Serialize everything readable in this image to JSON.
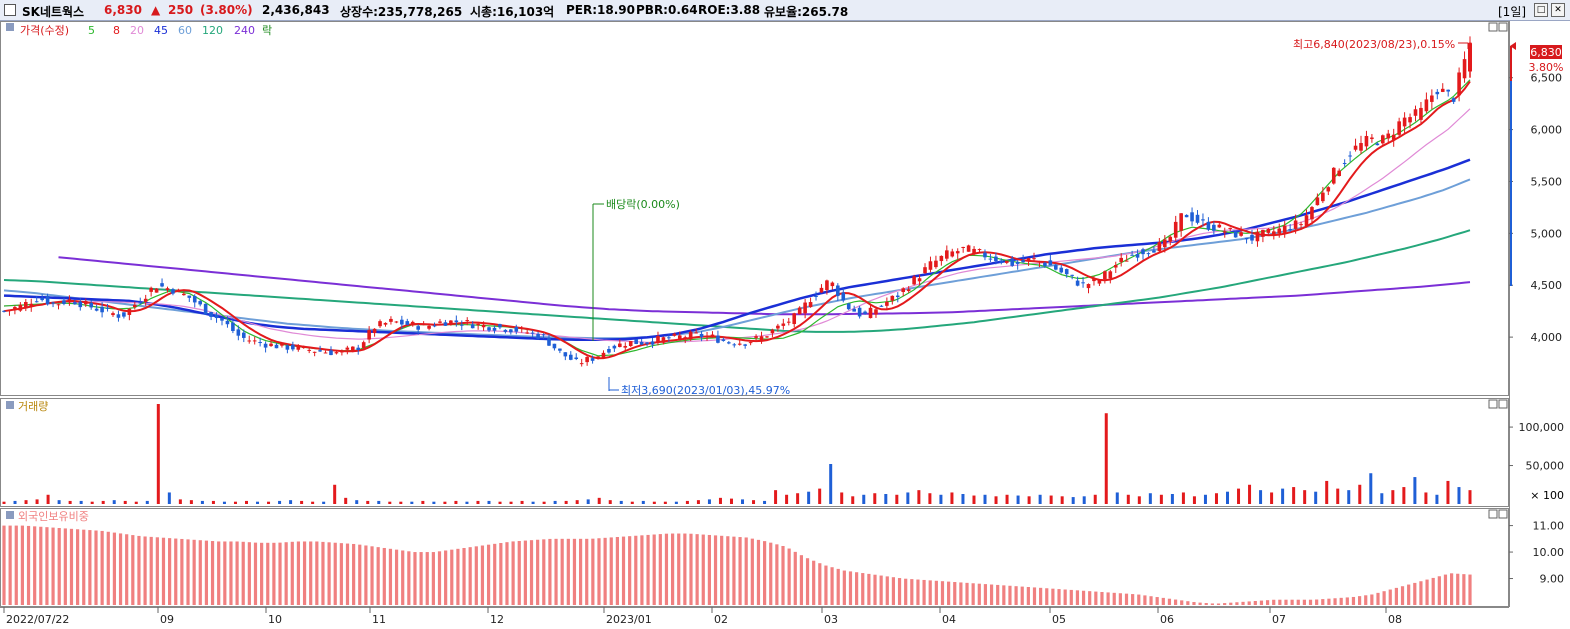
{
  "header": {
    "name": "SK네트웍스",
    "price": "6,830",
    "change_arrow": "▲",
    "change": "250",
    "change_pct": "(3.80%)",
    "volume": "2,436,843",
    "listed": "상장수:235,778,265",
    "mktcap": "시총:16,103억",
    "per": "PER:18.90",
    "pbr": "PBR:0.64",
    "roe": "ROE:3.88",
    "float": "유보율:265.78",
    "period": "[1일]"
  },
  "legend": {
    "price": "가격(수정)",
    "ma5": "5",
    "ma8": "8",
    "ma20": "20",
    "ma45": "45",
    "ma60": "60",
    "ma120": "120",
    "ma240": "240",
    "drop": "락"
  },
  "volume_panel_title": "거래량",
  "foreign_panel_title": "외국인보유비중",
  "colors": {
    "up": "#e31a1c",
    "down": "#1f5fd6",
    "ma5": "#2db82d",
    "ma8": "#e31a1c",
    "ma20": "#e08ad6",
    "ma45": "#1a2fd6",
    "ma60": "#6e9fd8",
    "ma120": "#25a77b",
    "ma240": "#7b2fd6",
    "foreign": "#f08080",
    "annotation_green": "#1b8a1b"
  },
  "chart_data": {
    "type": "line",
    "candles_shown": true,
    "x_tick_labels": [
      "2022/07/22",
      "09",
      "10",
      "11",
      "12",
      "2023/01",
      "02",
      "03",
      "04",
      "05",
      "06",
      "07",
      "08"
    ],
    "price": {
      "ylim": [
        3500,
        6950
      ],
      "y_ticks": [
        "6,500",
        "6,000",
        "5,500",
        "5,000",
        "4,500",
        "4,000"
      ],
      "y_values": [
        6500,
        6000,
        5500,
        5000,
        4500,
        4000
      ],
      "last_price_label": "6,830",
      "last_change_label": "3.80%",
      "close_path": [
        4250,
        4300,
        4380,
        4320,
        4360,
        4300,
        4250,
        4200,
        4350,
        4500,
        4460,
        4380,
        4250,
        4150,
        4000,
        3950,
        3920,
        3900,
        3880,
        3860,
        3850,
        3900,
        4100,
        4150,
        4120,
        4100,
        4150,
        4150,
        4120,
        4100,
        4080,
        4050,
        4000,
        3850,
        3750,
        3800,
        3900,
        3950,
        3950,
        3980,
        4000,
        4020,
        4000,
        3950,
        3950,
        4000,
        4100,
        4200,
        4400,
        4550,
        4300,
        4200,
        4300,
        4400,
        4550,
        4700,
        4800,
        4850,
        4800,
        4750,
        4700,
        4750,
        4700,
        4600,
        4500,
        4550,
        4700,
        4800,
        4850,
        4900,
        5200,
        5100,
        5050,
        5000,
        4950,
        5000,
        5050,
        5100,
        5350,
        5600,
        5800,
        5900,
        5900,
        6100,
        6150,
        6400,
        6300,
        6830
      ],
      "ma5": [
        4300,
        4310,
        4320,
        4330,
        4320,
        4290,
        4270,
        4280,
        4380,
        4450,
        4420,
        4320,
        4180,
        4050,
        3970,
        3930,
        3905,
        3885,
        3870,
        3870,
        3940,
        4050,
        4120,
        4120,
        4120,
        4120,
        4110,
        4100,
        4080,
        4050,
        3980,
        3880,
        3820,
        3830,
        3870,
        3920,
        3950,
        3975,
        3990,
        4000,
        3990,
        3980,
        3990,
        4050,
        4180,
        4300,
        4350,
        4330,
        4350,
        4450,
        4600,
        4720,
        4790,
        4780,
        4740,
        4710,
        4690,
        4600,
        4560,
        4600,
        4700,
        4790,
        4880,
        5000,
        5060,
        5040,
        5010,
        5000,
        5020,
        5080,
        5200,
        5400,
        5600,
        5750,
        5880,
        5950,
        6060,
        6200,
        6300,
        6480
      ],
      "ma20": [
        4300,
        4310,
        4320,
        4330,
        4340,
        4340,
        4330,
        4320,
        4300,
        4260,
        4200,
        4140,
        4080,
        4040,
        4010,
        3990,
        3980,
        3990,
        4010,
        4030,
        4050,
        4060,
        4060,
        4050,
        4030,
        4010,
        3990,
        3970,
        3960,
        3950,
        3950,
        3960,
        3970,
        3990,
        4010,
        4040,
        4080,
        4150,
        4250,
        4350,
        4430,
        4500,
        4560,
        4620,
        4660,
        4680,
        4700,
        4720,
        4740,
        4760,
        4780,
        4820,
        4880,
        4950,
        5000,
        5030,
        5040,
        5050,
        5080,
        5150,
        5250,
        5380,
        5520,
        5680,
        5850,
        6000,
        6200
      ],
      "ma45": [
        4400,
        4390,
        4380,
        4370,
        4360,
        4350,
        4320,
        4280,
        4230,
        4180,
        4130,
        4100,
        4080,
        4070,
        4060,
        4050,
        4040,
        4030,
        4020,
        4010,
        4000,
        3990,
        3980,
        3975,
        3975,
        3980,
        4000,
        4030,
        4080,
        4150,
        4230,
        4300,
        4370,
        4430,
        4480,
        4520,
        4560,
        4600,
        4640,
        4680,
        4720,
        4760,
        4800,
        4830,
        4860,
        4880,
        4900,
        4920,
        4950,
        4990,
        5040,
        5100,
        5160,
        5230,
        5300,
        5380,
        5460,
        5540,
        5620,
        5710
      ],
      "ma60": [
        4450,
        4430,
        4400,
        4370,
        4340,
        4310,
        4280,
        4250,
        4220,
        4190,
        4160,
        4130,
        4110,
        4090,
        4075,
        4060,
        4050,
        4040,
        4030,
        4020,
        4010,
        4000,
        3995,
        3990,
        3990,
        4000,
        4020,
        4050,
        4100,
        4160,
        4220,
        4280,
        4330,
        4380,
        4420,
        4460,
        4500,
        4540,
        4580,
        4620,
        4660,
        4700,
        4740,
        4780,
        4820,
        4850,
        4880,
        4910,
        4940,
        4980,
        5030,
        5080,
        5140,
        5200,
        5270,
        5340,
        5420,
        5520
      ],
      "ma120": [
        4550,
        4540,
        4520,
        4500,
        4480,
        4460,
        4440,
        4420,
        4400,
        4380,
        4360,
        4340,
        4320,
        4300,
        4280,
        4260,
        4240,
        4220,
        4200,
        4180,
        4160,
        4140,
        4120,
        4100,
        4080,
        4060,
        4050,
        4050,
        4060,
        4080,
        4110,
        4140,
        4180,
        4220,
        4260,
        4300,
        4340,
        4380,
        4430,
        4480,
        4540,
        4600,
        4660,
        4720,
        4790,
        4860,
        4940,
        5030
      ],
      "ma240": [
        4820,
        4780,
        4740,
        4700,
        4660,
        4620,
        4580,
        4540,
        4500,
        4460,
        4420,
        4380,
        4340,
        4300,
        4270,
        4250,
        4240,
        4230,
        4220,
        4220,
        4225,
        4230,
        4240,
        4260,
        4280,
        4300,
        4320,
        4340,
        4360,
        4380,
        4400,
        4430,
        4460,
        4490,
        4530
      ],
      "annotations": {
        "high": "최고6,840(2023/08/23),0.15%",
        "low": "최저3,690(2023/01/03),45.97%",
        "ex_dividend": "배당락(0.00%)"
      }
    },
    "volume": {
      "ylim": [
        0,
        130000
      ],
      "y_ticks": [
        "100,000",
        "50,000"
      ],
      "y_values": [
        100000,
        50000
      ],
      "unit_label": "× 100",
      "bars_k": [
        3,
        4,
        5,
        6,
        12,
        5,
        4,
        4,
        3,
        4,
        5,
        4,
        3,
        4,
        130,
        15,
        6,
        5,
        4,
        4,
        3,
        3,
        4,
        3,
        3,
        4,
        5,
        4,
        3,
        3,
        25,
        8,
        5,
        4,
        4,
        3,
        3,
        3,
        4,
        3,
        3,
        4,
        3,
        4,
        4,
        3,
        3,
        4,
        3,
        3,
        4,
        4,
        5,
        6,
        8,
        5,
        4,
        3,
        4,
        3,
        3,
        3,
        4,
        5,
        6,
        8,
        7,
        6,
        5,
        4,
        18,
        12,
        14,
        16,
        20,
        52,
        15,
        10,
        12,
        14,
        13,
        12,
        15,
        18,
        14,
        12,
        15,
        13,
        11,
        12,
        10,
        12,
        11,
        10,
        12,
        11,
        10,
        9,
        10,
        12,
        118,
        15,
        12,
        10,
        14,
        12,
        13,
        15,
        10,
        12,
        14,
        16,
        20,
        25,
        18,
        15,
        20,
        22,
        18,
        16,
        30,
        20,
        18,
        25,
        40,
        14,
        18,
        22,
        35,
        15,
        12,
        30,
        22,
        18
      ],
      "bars_up_mask": [
        1,
        0,
        1,
        1,
        1,
        0,
        1,
        0,
        1,
        1,
        0,
        1,
        1,
        0,
        1,
        0,
        1,
        1,
        0,
        1,
        0,
        1,
        1,
        0,
        1,
        0,
        0,
        1,
        1,
        0,
        1,
        1,
        0,
        1,
        0,
        1,
        1,
        0,
        1,
        0,
        1,
        1,
        0,
        1,
        0,
        1,
        1,
        1,
        0,
        1,
        0,
        1,
        1,
        0,
        1,
        1,
        0,
        1,
        0,
        1,
        1,
        0,
        1,
        1,
        0,
        1,
        1,
        0,
        1,
        0,
        1,
        1,
        1,
        0,
        1,
        0,
        1,
        1,
        0,
        1,
        0,
        1,
        0,
        1,
        1,
        0,
        1,
        0,
        1,
        0,
        1,
        1,
        0,
        1,
        0,
        1,
        1,
        0,
        0,
        1,
        1,
        0,
        1,
        1,
        0,
        1,
        0,
        1,
        1,
        0,
        1,
        0,
        1,
        1,
        0,
        1,
        0,
        1,
        1,
        0,
        1,
        1,
        0,
        1,
        0,
        0,
        1,
        1,
        0,
        1,
        0,
        1,
        0,
        1
      ]
    },
    "foreign_ratio": {
      "ylim": [
        8.0,
        11.4
      ],
      "y_ticks": [
        "11.00",
        "10.00",
        "9.00"
      ],
      "y_values": [
        11.0,
        10.0,
        9.0
      ],
      "path_pct": [
        11.0,
        11.0,
        10.95,
        10.9,
        10.85,
        10.8,
        10.7,
        10.6,
        10.55,
        10.5,
        10.45,
        10.4,
        10.4,
        10.35,
        10.35,
        10.4,
        10.4,
        10.35,
        10.3,
        10.2,
        10.1,
        10.0,
        10.0,
        10.1,
        10.2,
        10.3,
        10.4,
        10.45,
        10.5,
        10.5,
        10.5,
        10.55,
        10.6,
        10.65,
        10.7,
        10.7,
        10.65,
        10.6,
        10.55,
        10.4,
        10.2,
        9.8,
        9.5,
        9.3,
        9.2,
        9.1,
        9.0,
        8.95,
        8.9,
        8.85,
        8.8,
        8.75,
        8.7,
        8.65,
        8.6,
        8.55,
        8.5,
        8.45,
        8.4,
        8.3,
        8.2,
        8.1,
        8.05,
        8.1,
        8.15,
        8.2,
        8.2,
        8.2,
        8.25,
        8.3,
        8.4,
        8.6,
        8.8,
        9.0,
        9.2,
        9.15
      ]
    }
  }
}
